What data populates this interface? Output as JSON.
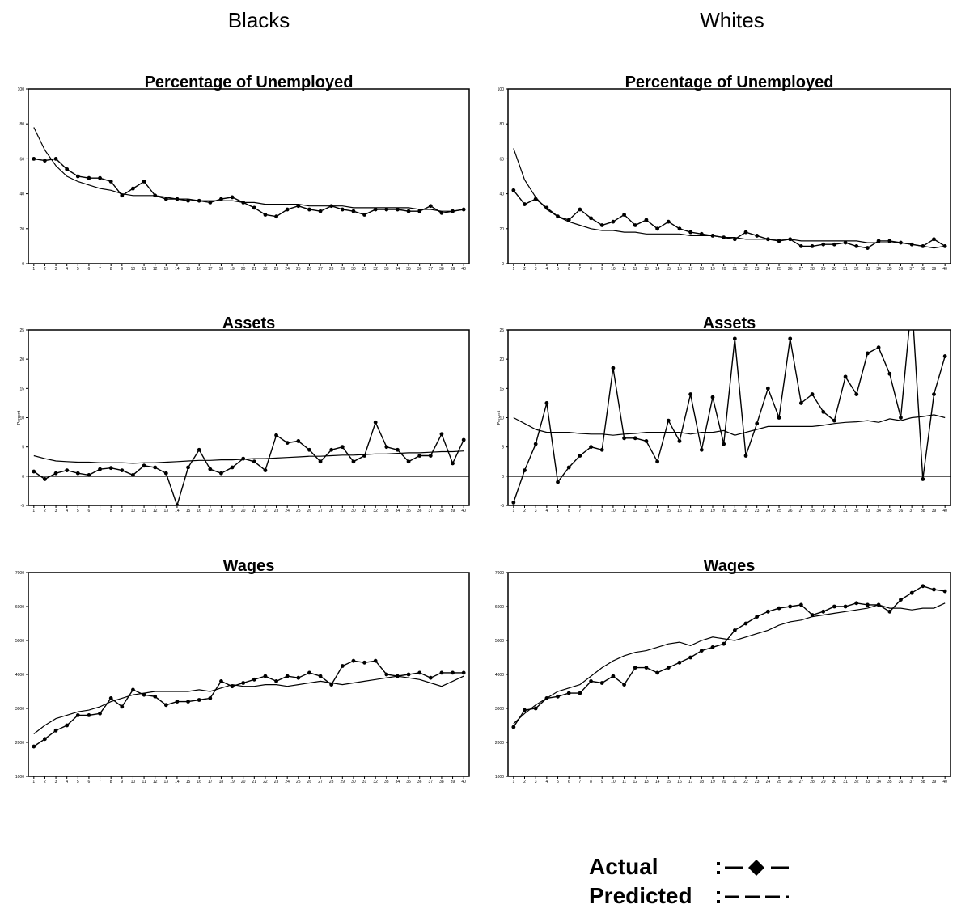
{
  "panel_titles": [
    "Blacks",
    "Whites"
  ],
  "chart_data": [
    {
      "type": "line",
      "title": "Percentage of Unemployed",
      "categories": [
        "1",
        "2",
        "3",
        "4",
        "5",
        "6",
        "7",
        "8",
        "9",
        "10",
        "11",
        "12",
        "13",
        "14",
        "15",
        "16",
        "17",
        "18",
        "19",
        "20",
        "21",
        "22",
        "23",
        "24",
        "25",
        "26",
        "27",
        "28",
        "29",
        "30",
        "31",
        "32",
        "33",
        "34",
        "35",
        "36",
        "37",
        "38",
        "39",
        "40"
      ],
      "ylim": [
        0,
        100
      ],
      "yticks": [
        0,
        20,
        40,
        60,
        80,
        100
      ],
      "series": [
        {
          "name": "Actual",
          "color": "#000000",
          "values": [
            60,
            59,
            60,
            54,
            50,
            49,
            49,
            47,
            39,
            43,
            47,
            39,
            37,
            37,
            36,
            36,
            35,
            37,
            38,
            35,
            32,
            28,
            27,
            31,
            33,
            31,
            30,
            33,
            31,
            30,
            28,
            31,
            31,
            31,
            30,
            30,
            33,
            29,
            30,
            31
          ]
        },
        {
          "name": "Predicted",
          "color": "#000000",
          "values": [
            78,
            65,
            56,
            50,
            47,
            45,
            43,
            42,
            40,
            39,
            39,
            39,
            38,
            37,
            37,
            36,
            36,
            36,
            36,
            35,
            35,
            34,
            34,
            34,
            34,
            33,
            33,
            33,
            33,
            32,
            32,
            32,
            32,
            32,
            32,
            31,
            31,
            30,
            30,
            31
          ]
        }
      ]
    },
    {
      "type": "line",
      "title": "Percentage of Unemployed",
      "categories": [
        "1",
        "2",
        "3",
        "4",
        "5",
        "6",
        "7",
        "8",
        "9",
        "10",
        "11",
        "12",
        "13",
        "14",
        "15",
        "16",
        "17",
        "18",
        "19",
        "20",
        "21",
        "22",
        "23",
        "24",
        "25",
        "26",
        "27",
        "28",
        "29",
        "30",
        "31",
        "32",
        "33",
        "34",
        "35",
        "36",
        "37",
        "38",
        "39",
        "40"
      ],
      "ylim": [
        0,
        100
      ],
      "yticks": [
        0,
        20,
        40,
        60,
        80,
        100
      ],
      "series": [
        {
          "name": "Actual",
          "color": "#000000",
          "values": [
            42,
            34,
            37,
            32,
            27,
            25,
            31,
            26,
            22,
            24,
            28,
            22,
            25,
            20,
            24,
            20,
            18,
            17,
            16,
            15,
            14,
            18,
            16,
            14,
            13,
            14,
            10,
            10,
            11,
            11,
            12,
            10,
            9,
            13,
            13,
            12,
            11,
            10,
            14,
            10
          ]
        },
        {
          "name": "Predicted",
          "color": "#000000",
          "values": [
            66,
            48,
            38,
            31,
            27,
            24,
            22,
            20,
            19,
            19,
            18,
            18,
            17,
            17,
            17,
            17,
            16,
            16,
            16,
            15,
            15,
            14,
            14,
            14,
            14,
            14,
            13,
            13,
            13,
            13,
            13,
            13,
            12,
            12,
            12,
            12,
            11,
            10,
            9,
            10
          ]
        }
      ]
    },
    {
      "type": "line",
      "title": "Assets",
      "ylabel": "Percent",
      "categories": [
        "1",
        "2",
        "3",
        "4",
        "5",
        "6",
        "7",
        "8",
        "9",
        "10",
        "11",
        "12",
        "13",
        "14",
        "15",
        "16",
        "17",
        "18",
        "19",
        "20",
        "21",
        "22",
        "23",
        "24",
        "25",
        "26",
        "27",
        "28",
        "29",
        "30",
        "31",
        "32",
        "33",
        "34",
        "35",
        "36",
        "37",
        "38",
        "39",
        "40"
      ],
      "ylim": [
        -5,
        25
      ],
      "yticks": [
        -5,
        0,
        5,
        10,
        15,
        20,
        25
      ],
      "series": [
        {
          "name": "Actual",
          "color": "#000000",
          "values": [
            0.8,
            -0.5,
            0.5,
            1,
            0.5,
            0.2,
            1.2,
            1.4,
            1,
            0.2,
            1.8,
            1.5,
            0.5,
            -5,
            1.5,
            4.5,
            1.2,
            0.5,
            1.5,
            3,
            2.5,
            1,
            7,
            5.7,
            6,
            4.5,
            2.5,
            4.5,
            5,
            2.5,
            3.5,
            9.2,
            5,
            4.5,
            2.5,
            3.5,
            3.5,
            7.2,
            2.2,
            6.2
          ]
        },
        {
          "name": "Predicted",
          "color": "#000000",
          "values": [
            3.5,
            3,
            2.6,
            2.5,
            2.4,
            2.4,
            2.3,
            2.3,
            2.3,
            2.2,
            2.3,
            2.3,
            2.4,
            2.5,
            2.6,
            2.7,
            2.7,
            2.8,
            2.8,
            2.9,
            3,
            3,
            3.1,
            3.2,
            3.3,
            3.4,
            3.4,
            3.5,
            3.6,
            3.6,
            3.7,
            3.8,
            3.8,
            3.9,
            4,
            4,
            4.1,
            4.2,
            4.2,
            4.3
          ]
        }
      ]
    },
    {
      "type": "line",
      "title": "Assets",
      "ylabel": "Percent",
      "categories": [
        "1",
        "2",
        "3",
        "4",
        "5",
        "6",
        "7",
        "8",
        "9",
        "10",
        "11",
        "12",
        "13",
        "14",
        "15",
        "16",
        "17",
        "18",
        "19",
        "20",
        "21",
        "22",
        "23",
        "24",
        "25",
        "26",
        "27",
        "28",
        "29",
        "30",
        "31",
        "32",
        "33",
        "34",
        "35",
        "36",
        "37",
        "38",
        "39",
        "40"
      ],
      "ylim": [
        -5,
        25
      ],
      "yticks": [
        -5,
        0,
        5,
        10,
        15,
        20,
        25
      ],
      "series": [
        {
          "name": "Actual",
          "color": "#000000",
          "values": [
            -4.5,
            1,
            5.5,
            12.5,
            -1,
            1.5,
            3.5,
            5,
            4.5,
            18.5,
            6.5,
            6.5,
            6,
            2.5,
            9.5,
            6,
            14,
            4.5,
            13.5,
            5.5,
            23.5,
            3.5,
            9,
            15,
            10,
            23.5,
            12.5,
            14,
            11,
            9.5,
            17,
            14,
            21,
            22,
            17.5,
            10,
            30,
            -0.5,
            14,
            20.5
          ]
        },
        {
          "name": "Predicted",
          "color": "#000000",
          "values": [
            10,
            9,
            8,
            7.5,
            7.5,
            7.5,
            7.3,
            7.2,
            7.2,
            7,
            7.2,
            7.3,
            7.5,
            7.5,
            7.5,
            7.5,
            7.2,
            7.5,
            7.5,
            7.8,
            7,
            7.5,
            8,
            8.5,
            8.5,
            8.5,
            8.5,
            8.5,
            8.7,
            9,
            9.2,
            9.3,
            9.5,
            9.2,
            9.8,
            9.5,
            10,
            10.2,
            10.5,
            10
          ]
        }
      ]
    },
    {
      "type": "line",
      "title": "Wages",
      "categories": [
        "1",
        "2",
        "3",
        "4",
        "5",
        "6",
        "7",
        "8",
        "9",
        "10",
        "11",
        "12",
        "13",
        "14",
        "15",
        "16",
        "17",
        "18",
        "19",
        "20",
        "21",
        "22",
        "23",
        "24",
        "25",
        "26",
        "27",
        "28",
        "29",
        "30",
        "31",
        "32",
        "33",
        "34",
        "35",
        "36",
        "37",
        "38",
        "39",
        "40"
      ],
      "ylim": [
        1000,
        7000
      ],
      "yticks": [
        1000,
        2000,
        3000,
        4000,
        5000,
        6000,
        7000
      ],
      "series": [
        {
          "name": "Actual",
          "color": "#000000",
          "values": [
            1880,
            2100,
            2350,
            2500,
            2800,
            2800,
            2850,
            3300,
            3050,
            3550,
            3400,
            3350,
            3100,
            3200,
            3200,
            3250,
            3300,
            3800,
            3650,
            3750,
            3850,
            3950,
            3800,
            3950,
            3900,
            4050,
            3950,
            3700,
            4250,
            4400,
            4350,
            4400,
            4000,
            3950,
            4000,
            4050,
            3900,
            4050,
            4050,
            4050
          ]
        },
        {
          "name": "Predicted",
          "color": "#000000",
          "values": [
            2250,
            2500,
            2700,
            2800,
            2900,
            2950,
            3050,
            3200,
            3300,
            3400,
            3450,
            3500,
            3500,
            3500,
            3500,
            3550,
            3500,
            3600,
            3700,
            3650,
            3650,
            3700,
            3700,
            3650,
            3700,
            3750,
            3800,
            3750,
            3700,
            3750,
            3800,
            3850,
            3900,
            3950,
            3900,
            3850,
            3750,
            3650,
            3800,
            3950
          ]
        }
      ]
    },
    {
      "type": "line",
      "title": "Wages",
      "categories": [
        "1",
        "2",
        "3",
        "4",
        "5",
        "6",
        "7",
        "8",
        "9",
        "10",
        "11",
        "12",
        "13",
        "14",
        "15",
        "16",
        "17",
        "18",
        "19",
        "20",
        "21",
        "22",
        "23",
        "24",
        "25",
        "26",
        "27",
        "28",
        "29",
        "30",
        "31",
        "32",
        "33",
        "34",
        "35",
        "36",
        "37",
        "38",
        "39",
        "40"
      ],
      "ylim": [
        1000,
        7000
      ],
      "yticks": [
        1000,
        2000,
        3000,
        4000,
        5000,
        6000,
        7000
      ],
      "series": [
        {
          "name": "Actual",
          "color": "#000000",
          "values": [
            2450,
            2950,
            3000,
            3300,
            3350,
            3450,
            3450,
            3800,
            3750,
            3950,
            3700,
            4200,
            4200,
            4050,
            4200,
            4350,
            4500,
            4700,
            4800,
            4900,
            5300,
            5500,
            5700,
            5850,
            5950,
            6000,
            6050,
            5750,
            5850,
            6000,
            6000,
            6100,
            6050,
            6050,
            5850,
            6200,
            6400,
            6600,
            6500,
            6450
          ]
        },
        {
          "name": "Predicted",
          "color": "#000000",
          "values": [
            2550,
            2850,
            3100,
            3300,
            3500,
            3600,
            3700,
            3950,
            4200,
            4400,
            4550,
            4650,
            4700,
            4800,
            4900,
            4950,
            4850,
            5000,
            5100,
            5050,
            5000,
            5100,
            5200,
            5300,
            5450,
            5550,
            5600,
            5700,
            5750,
            5800,
            5850,
            5900,
            5950,
            6050,
            5950,
            5950,
            5900,
            5950,
            5950,
            6100
          ]
        }
      ]
    }
  ]
}
